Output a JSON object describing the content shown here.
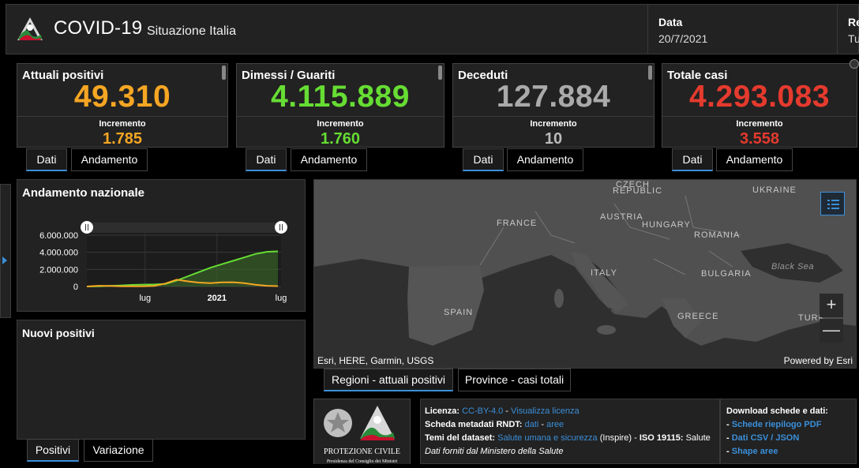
{
  "header": {
    "title": "COVID-19",
    "subtitle": "Situazione Italia",
    "date_label": "Data",
    "date_value": "20/7/2021",
    "cut_label": "Re",
    "cut_value": "Tu"
  },
  "cards": [
    {
      "title": "Attuali positivi",
      "value": "49.310",
      "inc_label": "Incremento",
      "inc_value": "1.785",
      "color": "#f5a623"
    },
    {
      "title": "Dimessi / Guariti",
      "value": "4.115.889",
      "inc_label": "Incremento",
      "inc_value": "1.760",
      "color": "#66dd33"
    },
    {
      "title": "Deceduti",
      "value": "127.884",
      "inc_label": "Incremento",
      "inc_value": "10",
      "color": "#aaaaaa"
    },
    {
      "title": "Totale casi",
      "value": "4.293.083",
      "inc_label": "Incremento",
      "inc_value": "3.558",
      "color": "#e53a2e"
    }
  ],
  "card_tabs": {
    "dati": "Dati",
    "andamento": "Andamento"
  },
  "trend": {
    "title": "Andamento nazionale",
    "chart_data": {
      "type": "area",
      "x_ticks": [
        "lug",
        "2021",
        "lug"
      ],
      "y_ticks": [
        "6.000.000",
        "4.000.000",
        "2.000.000",
        "0"
      ],
      "ylim": [
        0,
        6000000
      ],
      "series": [
        {
          "color": "#66dd33",
          "values": [
            0,
            20000,
            60000,
            120000,
            180000,
            220000,
            240000,
            300000,
            700000,
            1200000,
            1700000,
            2200000,
            2600000,
            3000000,
            3400000,
            3800000,
            4050000,
            4115889
          ]
        },
        {
          "color": "#f5a623",
          "values": [
            0,
            80000,
            60000,
            20000,
            15000,
            20000,
            60000,
            350000,
            790000,
            600000,
            450000,
            400000,
            480000,
            500000,
            400000,
            200000,
            80000,
            49310
          ]
        }
      ]
    }
  },
  "newpos": {
    "title": "Nuovi positivi"
  },
  "newpos_tabs": {
    "positivi": "Positivi",
    "variazione": "Variazione"
  },
  "map": {
    "labels": {
      "czech": "CZECH",
      "republic": "REPUBLIC",
      "ukraine": "UKRAINE",
      "france": "FRANCE",
      "austria": "AUSTRIA",
      "hungary": "HUNGARY",
      "romania": "ROMANIA",
      "italy": "ITALY",
      "bulgaria": "BULGARIA",
      "black_sea": "Black Sea",
      "spain": "SPAIN",
      "greece": "GREECE",
      "turkey": "TURK"
    },
    "attribution": "Esri, HERE, Garmin, USGS",
    "powered": "Powered by Esri",
    "zoom_in": "+",
    "zoom_out": "—"
  },
  "map_tabs": {
    "regioni": "Regioni - attuali positivi",
    "province": "Province - casi totali"
  },
  "logo_caption": "PROTEZIONE CIVILE",
  "logo_caption_small": "Presidenza del Consiglio dei Ministri",
  "info": {
    "licenza_label": "Licenza:",
    "licenza_link": "CC-BY-4.0",
    "licenza_sep": " - ",
    "licenza_view": "Visualizza licenza",
    "scheda_label": "Scheda metadati RNDT:",
    "scheda_dati": "dati",
    "scheda_sep": " - ",
    "scheda_aree": "aree",
    "temi_label": "Temi del dataset:",
    "temi_link": "Salute umana e sicurezza",
    "temi_rest": "(Inspire) - ",
    "temi_iso": "ISO 19115:",
    "temi_salute": " Salute",
    "fonte": "Dati forniti dal Ministero della Salute"
  },
  "download": {
    "title": "Download schede e dati:",
    "items": [
      "Schede riepilogo PDF",
      "Dati CSV / JSON",
      "Shape aree"
    ]
  }
}
